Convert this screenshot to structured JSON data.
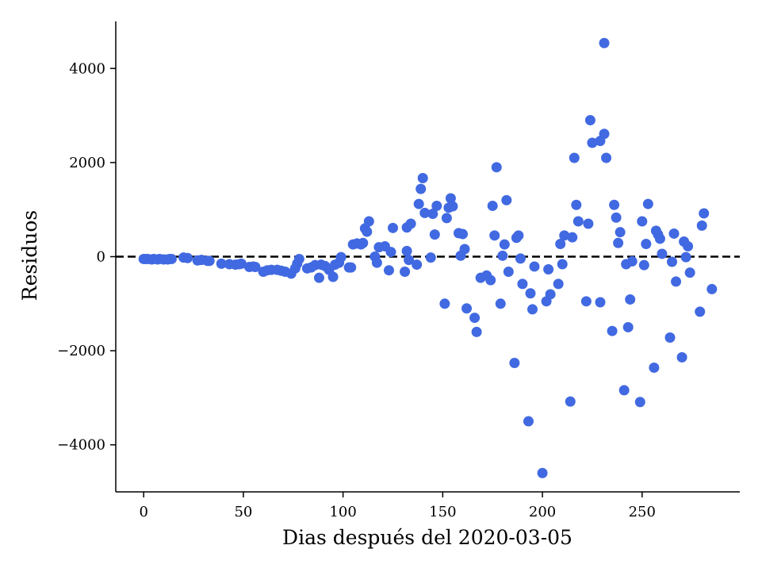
{
  "chart_data": {
    "type": "scatter",
    "title": "",
    "xlabel": "Dias después del 2020-03-05",
    "ylabel": "Residuos",
    "xlim": [
      -14,
      299
    ],
    "ylim": [
      -5000,
      5000
    ],
    "xticks": [
      0,
      50,
      100,
      150,
      200,
      250
    ],
    "yticks": [
      -4000,
      -2000,
      0,
      2000,
      4000
    ],
    "xtick_labels": [
      "0",
      "50",
      "100",
      "150",
      "200",
      "250"
    ],
    "ytick_labels": [
      "−4000",
      "−2000",
      "0",
      "2000",
      "4000"
    ],
    "reference_line": {
      "y": 0,
      "style": "dashed",
      "color": "#000000"
    },
    "grid": false,
    "marker_color": "#4169E1",
    "points": [
      [
        0,
        -50
      ],
      [
        1,
        -50
      ],
      [
        2,
        -50
      ],
      [
        4,
        -60
      ],
      [
        5,
        -50
      ],
      [
        7,
        -60
      ],
      [
        8,
        -50
      ],
      [
        10,
        -60
      ],
      [
        12,
        -60
      ],
      [
        13,
        -50
      ],
      [
        14,
        -50
      ],
      [
        20,
        -20
      ],
      [
        22,
        -30
      ],
      [
        27,
        -80
      ],
      [
        29,
        -70
      ],
      [
        32,
        -90
      ],
      [
        33,
        -90
      ],
      [
        39,
        -150
      ],
      [
        43,
        -160
      ],
      [
        46,
        -170
      ],
      [
        48,
        -160
      ],
      [
        49,
        -150
      ],
      [
        53,
        -220
      ],
      [
        55,
        -210
      ],
      [
        56,
        -220
      ],
      [
        60,
        -320
      ],
      [
        62,
        -290
      ],
      [
        64,
        -280
      ],
      [
        67,
        -280
      ],
      [
        69,
        -300
      ],
      [
        71,
        -320
      ],
      [
        74,
        -360
      ],
      [
        76,
        -250
      ],
      [
        77,
        -150
      ],
      [
        78,
        -50
      ],
      [
        82,
        -250
      ],
      [
        84,
        -230
      ],
      [
        86,
        -180
      ],
      [
        88,
        -450
      ],
      [
        89,
        -170
      ],
      [
        91,
        -200
      ],
      [
        93,
        -280
      ],
      [
        95,
        -430
      ],
      [
        96,
        -170
      ],
      [
        98,
        -130
      ],
      [
        99,
        -10
      ],
      [
        103,
        -230
      ],
      [
        104,
        -230
      ],
      [
        105,
        260
      ],
      [
        107,
        280
      ],
      [
        109,
        260
      ],
      [
        110,
        290
      ],
      [
        111,
        600
      ],
      [
        112,
        530
      ],
      [
        113,
        750
      ],
      [
        116,
        0
      ],
      [
        117,
        -130
      ],
      [
        118,
        200
      ],
      [
        121,
        220
      ],
      [
        123,
        -290
      ],
      [
        124,
        100
      ],
      [
        125,
        610
      ],
      [
        131,
        -320
      ],
      [
        132,
        120
      ],
      [
        132,
        620
      ],
      [
        133,
        -70
      ],
      [
        134,
        700
      ],
      [
        137,
        -170
      ],
      [
        138,
        1120
      ],
      [
        139,
        1440
      ],
      [
        140,
        1670
      ],
      [
        141,
        930
      ],
      [
        144,
        -20
      ],
      [
        145,
        910
      ],
      [
        146,
        470
      ],
      [
        147,
        1080
      ],
      [
        151,
        -1000
      ],
      [
        152,
        820
      ],
      [
        153,
        1040
      ],
      [
        154,
        1240
      ],
      [
        155,
        1070
      ],
      [
        158,
        500
      ],
      [
        159,
        20
      ],
      [
        160,
        480
      ],
      [
        161,
        160
      ],
      [
        162,
        -1100
      ],
      [
        166,
        -1300
      ],
      [
        167,
        -1600
      ],
      [
        169,
        -450
      ],
      [
        172,
        -400
      ],
      [
        174,
        -500
      ],
      [
        175,
        1080
      ],
      [
        176,
        450
      ],
      [
        177,
        1900
      ],
      [
        179,
        -1000
      ],
      [
        180,
        20
      ],
      [
        181,
        260
      ],
      [
        182,
        1200
      ],
      [
        183,
        -320
      ],
      [
        186,
        -2260
      ],
      [
        187,
        400
      ],
      [
        188,
        450
      ],
      [
        189,
        -40
      ],
      [
        190,
        -580
      ],
      [
        193,
        -3500
      ],
      [
        194,
        -780
      ],
      [
        195,
        -1120
      ],
      [
        196,
        -210
      ],
      [
        200,
        -4600
      ],
      [
        202,
        -950
      ],
      [
        203,
        -270
      ],
      [
        204,
        -800
      ],
      [
        208,
        -580
      ],
      [
        209,
        270
      ],
      [
        210,
        -160
      ],
      [
        211,
        450
      ],
      [
        214,
        -3080
      ],
      [
        215,
        410
      ],
      [
        216,
        2100
      ],
      [
        217,
        1100
      ],
      [
        218,
        750
      ],
      [
        222,
        -950
      ],
      [
        223,
        700
      ],
      [
        224,
        2900
      ],
      [
        225,
        2420
      ],
      [
        229,
        -970
      ],
      [
        229,
        2460
      ],
      [
        231,
        4540
      ],
      [
        231,
        2610
      ],
      [
        232,
        2100
      ],
      [
        235,
        -1580
      ],
      [
        236,
        1100
      ],
      [
        237,
        830
      ],
      [
        238,
        290
      ],
      [
        239,
        520
      ],
      [
        241,
        -2840
      ],
      [
        242,
        -160
      ],
      [
        243,
        -1500
      ],
      [
        244,
        -910
      ],
      [
        245,
        -100
      ],
      [
        249,
        -3090
      ],
      [
        250,
        750
      ],
      [
        251,
        -180
      ],
      [
        252,
        270
      ],
      [
        253,
        1120
      ],
      [
        256,
        -2360
      ],
      [
        257,
        550
      ],
      [
        258,
        470
      ],
      [
        259,
        380
      ],
      [
        260,
        60
      ],
      [
        264,
        -1720
      ],
      [
        265,
        -110
      ],
      [
        266,
        490
      ],
      [
        267,
        -530
      ],
      [
        270,
        -2140
      ],
      [
        271,
        320
      ],
      [
        272,
        -10
      ],
      [
        273,
        220
      ],
      [
        274,
        -340
      ],
      [
        279,
        -1170
      ],
      [
        280,
        660
      ],
      [
        281,
        920
      ],
      [
        285,
        -690
      ]
    ]
  }
}
